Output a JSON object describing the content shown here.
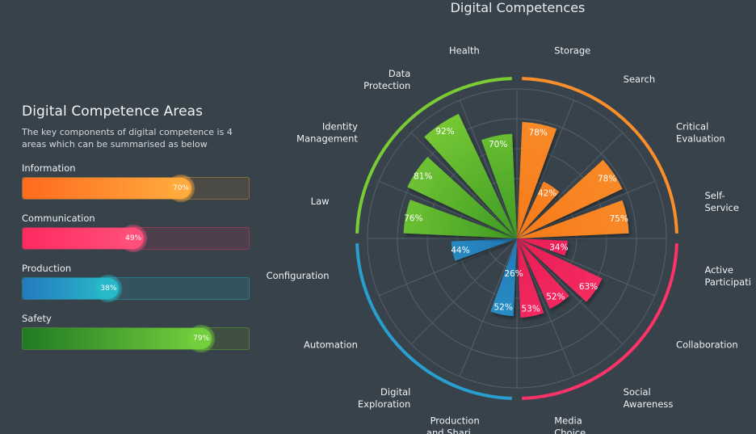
{
  "panel": {
    "title": "Digital Competence Areas",
    "description": "The key components of digital competence is 4 areas which can be summarised as below"
  },
  "areas": [
    {
      "label": "Information",
      "value": 70,
      "value_text": "70%",
      "color_start": "#ff6a1f",
      "color_end": "#ffaa3d",
      "track": "#4c4a45",
      "border": "#8a6a3c"
    },
    {
      "label": "Communication",
      "value": 49,
      "value_text": "49%",
      "color_start": "#ff2a60",
      "color_end": "#ff4f7a",
      "track": "#4d3f4c",
      "border": "#8a3c57"
    },
    {
      "label": "Production",
      "value": 38,
      "value_text": "38%",
      "color_start": "#2679bf",
      "color_end": "#27b9c8",
      "track": "#35535f",
      "border": "#2b7888"
    },
    {
      "label": "Safety",
      "value": 79,
      "value_text": "79%",
      "color_start": "#1f7a24",
      "color_end": "#74cf3c",
      "track": "#3f5040",
      "border": "#4e7a3c"
    }
  ],
  "chart_data": {
    "type": "polar-bar",
    "title": "Digital Competences",
    "r_range": [
      0,
      100
    ],
    "groups": [
      {
        "name": "Information",
        "color": "#f98e2b",
        "color_dark": "#f77a1a",
        "categories": [
          "Storage",
          "Search",
          "Critical Evaluation",
          "Self-Service"
        ]
      },
      {
        "name": "Communication",
        "color": "#ff3269",
        "color_dark": "#e61e55",
        "categories": [
          "Active Participation",
          "Collaboration",
          "Social Awareness",
          "Media Choice"
        ]
      },
      {
        "name": "Production",
        "color": "#2a9fcf",
        "color_dark": "#2378b7",
        "categories": [
          "Production and Shari...",
          "Digital Exploration",
          "Automation",
          "Configuration"
        ]
      },
      {
        "name": "Safety",
        "color": "#7acc35",
        "color_dark": "#3e9a24",
        "categories": [
          "Law",
          "Identity Management",
          "Data Protection",
          "Health"
        ]
      }
    ],
    "categories": [
      "Storage",
      "Search",
      "Critical Evaluation",
      "Self-Service",
      "Active Participation",
      "Collaboration",
      "Social Awareness",
      "Media Choice",
      "Production and Shari...",
      "Digital Exploration",
      "Automation",
      "Configuration",
      "Law",
      "Identity Management",
      "Data Protection",
      "Health"
    ],
    "values": [
      78,
      42,
      78,
      75,
      34,
      63,
      52,
      53,
      52,
      null,
      null,
      44,
      76,
      81,
      92,
      70
    ],
    "value_labels": [
      "78%",
      "42%",
      "78%",
      "75%",
      "34%",
      "63%",
      "52%",
      "53%",
      "52%",
      "",
      "",
      "44%",
      "76%",
      "81%",
      "92%",
      "70%"
    ],
    "center_label": "26%"
  }
}
